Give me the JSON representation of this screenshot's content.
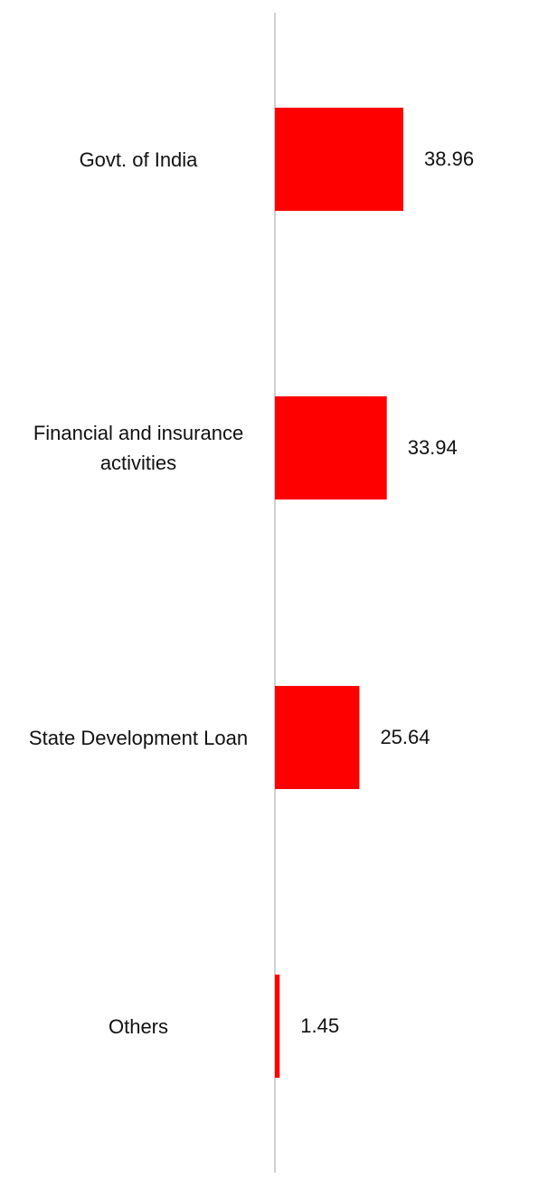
{
  "chart_data": {
    "type": "bar",
    "orientation": "horizontal",
    "categories": [
      "Govt. of India",
      "Financial and insurance activities",
      "State Development Loan",
      "Others"
    ],
    "values": [
      38.96,
      33.94,
      25.64,
      1.45
    ],
    "value_labels": [
      "38.96",
      "33.94",
      "25.64",
      "1.45"
    ],
    "xlim": [
      0,
      80
    ],
    "grid": false,
    "legend": "none",
    "bar_color": "#ff0000",
    "axis_color": "#d0d0d0"
  }
}
